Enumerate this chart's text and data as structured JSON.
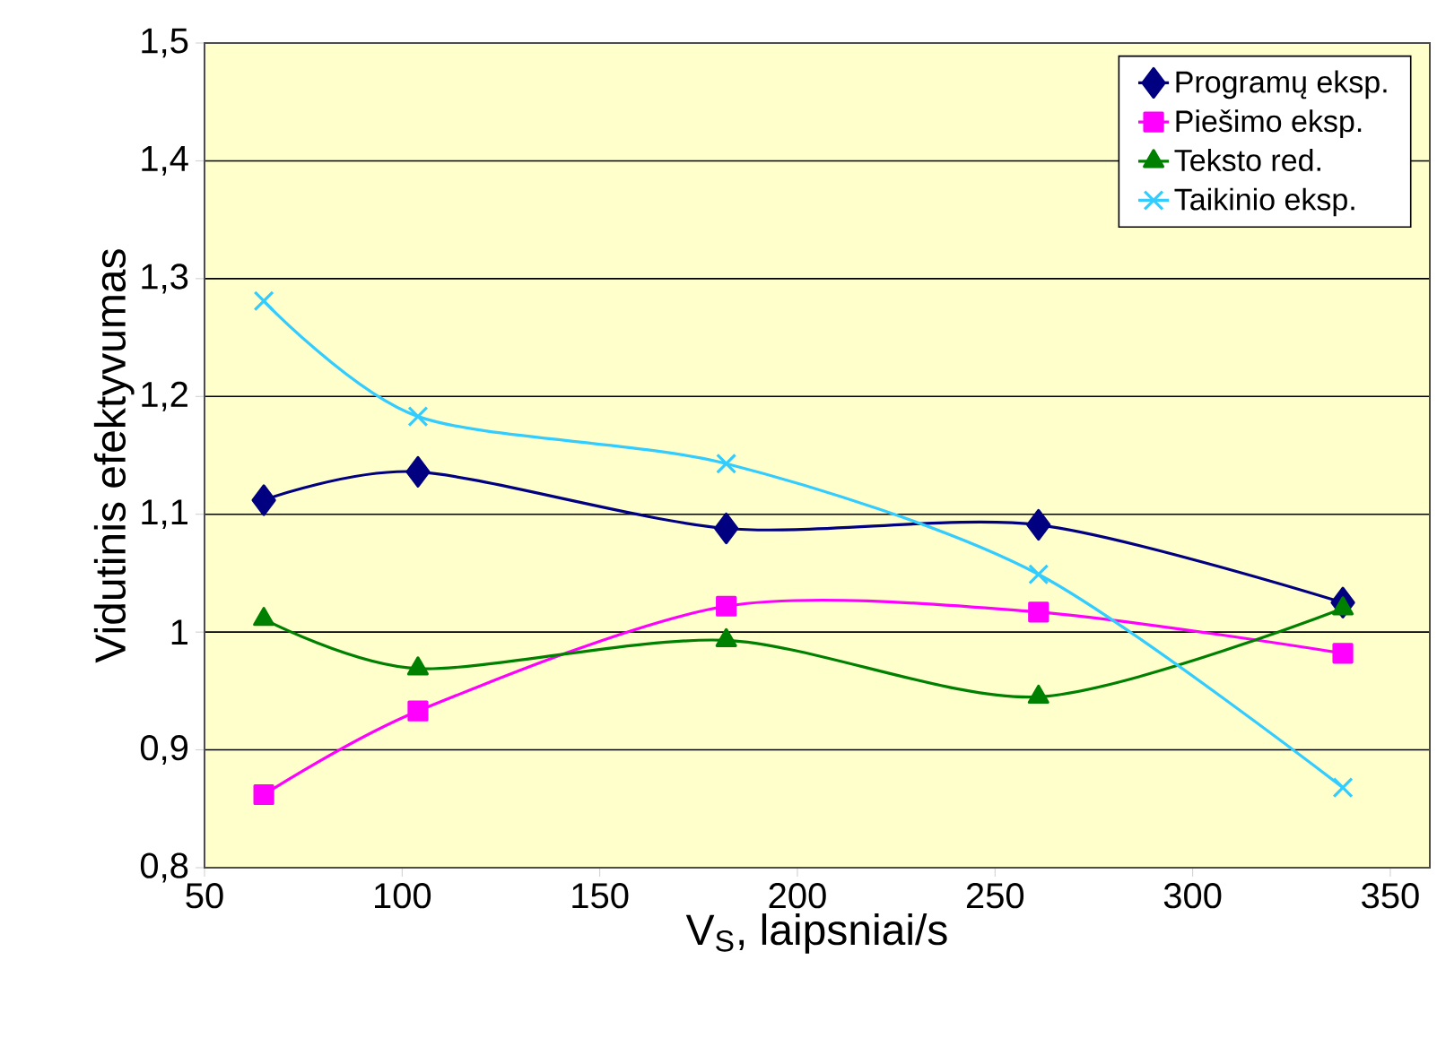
{
  "chart_data": {
    "type": "line",
    "xlabel": "V$_{S}$, laipsniai/s",
    "ylabel": "Vidutinis efektyvumas",
    "xlim": [
      50,
      360
    ],
    "xticks": [
      50,
      100,
      150,
      200,
      250,
      300,
      350
    ],
    "ylim": [
      0.8,
      1.5
    ],
    "yticks": [
      {
        "value": 0.8,
        "label": "0,8"
      },
      {
        "value": 0.9,
        "label": "0,9"
      },
      1,
      {
        "value": 1.1,
        "label": "1,1"
      },
      {
        "value": 1.2,
        "label": "1,2"
      },
      {
        "value": 1.3,
        "label": "1,3"
      },
      {
        "value": 1.4,
        "label": "1,4"
      },
      {
        "value": 1.5,
        "label": "1,5"
      }
    ],
    "grid": "y",
    "legend": "top right",
    "x": [
      65,
      104,
      182,
      261,
      338
    ],
    "series": [
      {
        "name": "Programų eksp.",
        "color": "#000080",
        "marker": "diamond",
        "values": [
          1.112,
          1.136,
          1.088,
          1.091,
          1.025
        ]
      },
      {
        "name": "Piešimo eksp.",
        "color": "#ff00ff",
        "marker": "square",
        "values": [
          0.862,
          0.933,
          1.022,
          1.017,
          0.982
        ]
      },
      {
        "name": "Teksto red.",
        "color": "#008000",
        "marker": "triangle",
        "values": [
          1.011,
          0.969,
          0.993,
          0.945,
          1.02
        ]
      },
      {
        "name": "Taikinio eksp.",
        "color": "#33ccff",
        "marker": "cross",
        "values": [
          1.281,
          1.183,
          1.143,
          1.049,
          0.868
        ]
      }
    ]
  }
}
